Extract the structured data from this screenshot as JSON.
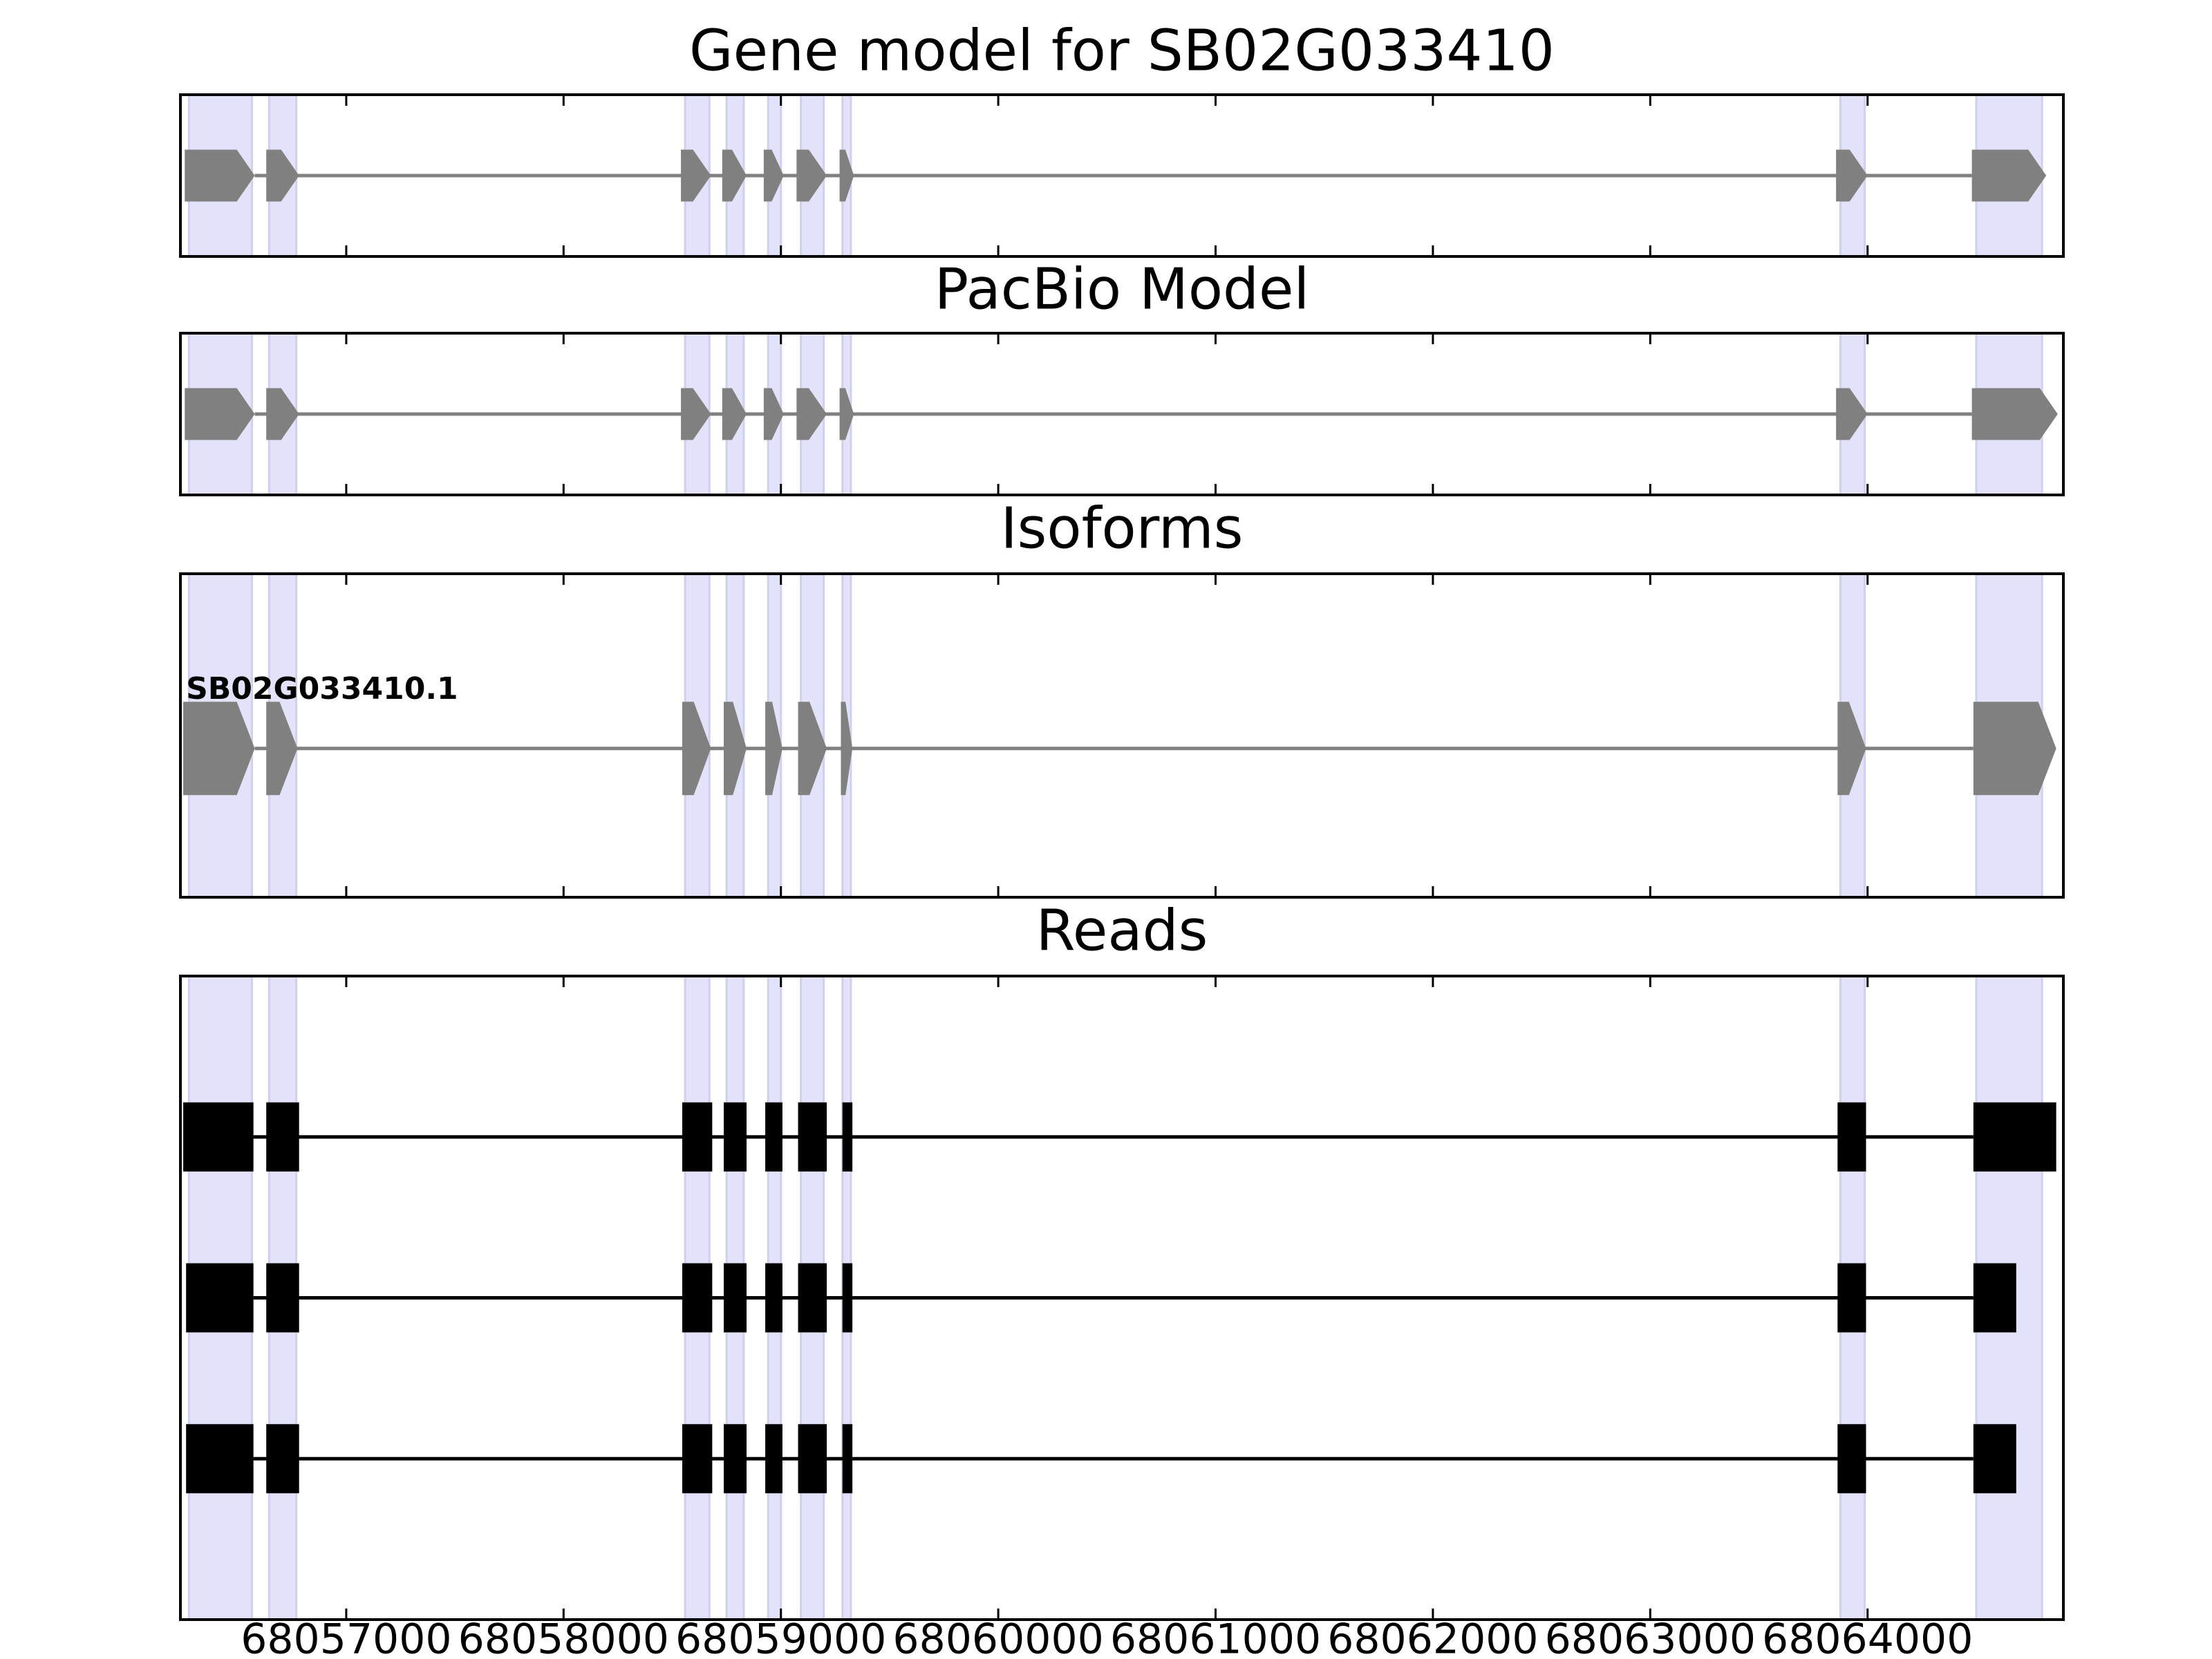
{
  "chart_data": {
    "type": "gene_tracks",
    "xlim": [
      68056237,
      68064901
    ],
    "xticks": [
      68057000,
      68058000,
      68059000,
      68060000,
      68061000,
      68062000,
      68063000,
      68064000
    ],
    "highlight_color": "#e2e2fb",
    "highlights": [
      [
        68056276,
        68056566
      ],
      [
        68056645,
        68056770
      ],
      [
        68058559,
        68058671
      ],
      [
        68058750,
        68058829
      ],
      [
        68058941,
        68059000
      ],
      [
        68059092,
        68059197
      ],
      [
        68059283,
        68059322
      ],
      [
        68063875,
        68063987
      ],
      [
        68064500,
        68064803
      ]
    ],
    "panels": [
      {
        "type": "gene_model",
        "title": "Gene model for SB02G033410",
        "color": "#808080",
        "tracks": [
          {
            "exons": [
              [
                68056257,
                68056579
              ],
              [
                68056632,
                68056783
              ],
              [
                68058540,
                68058678
              ],
              [
                68058730,
                68058842
              ],
              [
                68058921,
                68059013
              ],
              [
                68059072,
                68059211
              ],
              [
                68059270,
                68059336
              ],
              [
                68063855,
                68064000
              ],
              [
                68064480,
                68064822
              ]
            ]
          }
        ]
      },
      {
        "type": "gene_model",
        "title": "PacBio Model",
        "color": "#808080",
        "tracks": [
          {
            "exons": [
              [
                68056257,
                68056579
              ],
              [
                68056632,
                68056783
              ],
              [
                68058540,
                68058678
              ],
              [
                68058730,
                68058842
              ],
              [
                68058921,
                68059013
              ],
              [
                68059072,
                68059211
              ],
              [
                68059270,
                68059336
              ],
              [
                68063855,
                68064000
              ],
              [
                68064480,
                68064875
              ]
            ]
          }
        ]
      },
      {
        "type": "gene_model",
        "title": "Isoforms",
        "color": "#808080",
        "tracks": [
          {
            "name": "SB02G033410.1",
            "exons": [
              [
                68056250,
                68056579
              ],
              [
                68056632,
                68056776
              ],
              [
                68058546,
                68058678
              ],
              [
                68058737,
                68058842
              ],
              [
                68058928,
                68059007
              ],
              [
                68059079,
                68059211
              ],
              [
                68059276,
                68059329
              ],
              [
                68063862,
                68063993
              ],
              [
                68064487,
                68064868
              ]
            ]
          }
        ]
      },
      {
        "type": "reads",
        "title": "Reads",
        "color": "#000000",
        "tracks": [
          {
            "exons": [
              [
                68056250,
                68056573
              ],
              [
                68056632,
                68056783
              ],
              [
                68058546,
                68058684
              ],
              [
                68058737,
                68058842
              ],
              [
                68058928,
                68059007
              ],
              [
                68059079,
                68059211
              ],
              [
                68059283,
                68059329
              ],
              [
                68063862,
                68063993
              ],
              [
                68064487,
                68064868
              ]
            ]
          },
          {
            "exons": [
              [
                68056263,
                68056573
              ],
              [
                68056632,
                68056783
              ],
              [
                68058546,
                68058684
              ],
              [
                68058737,
                68058842
              ],
              [
                68058928,
                68059007
              ],
              [
                68059079,
                68059211
              ],
              [
                68059283,
                68059329
              ],
              [
                68063862,
                68063993
              ],
              [
                68064487,
                68064684
              ]
            ]
          },
          {
            "exons": [
              [
                68056263,
                68056573
              ],
              [
                68056632,
                68056783
              ],
              [
                68058546,
                68058684
              ],
              [
                68058737,
                68058842
              ],
              [
                68058928,
                68059007
              ],
              [
                68059079,
                68059211
              ],
              [
                68059283,
                68059329
              ],
              [
                68063862,
                68063993
              ],
              [
                68064487,
                68064684
              ]
            ]
          }
        ]
      }
    ]
  }
}
